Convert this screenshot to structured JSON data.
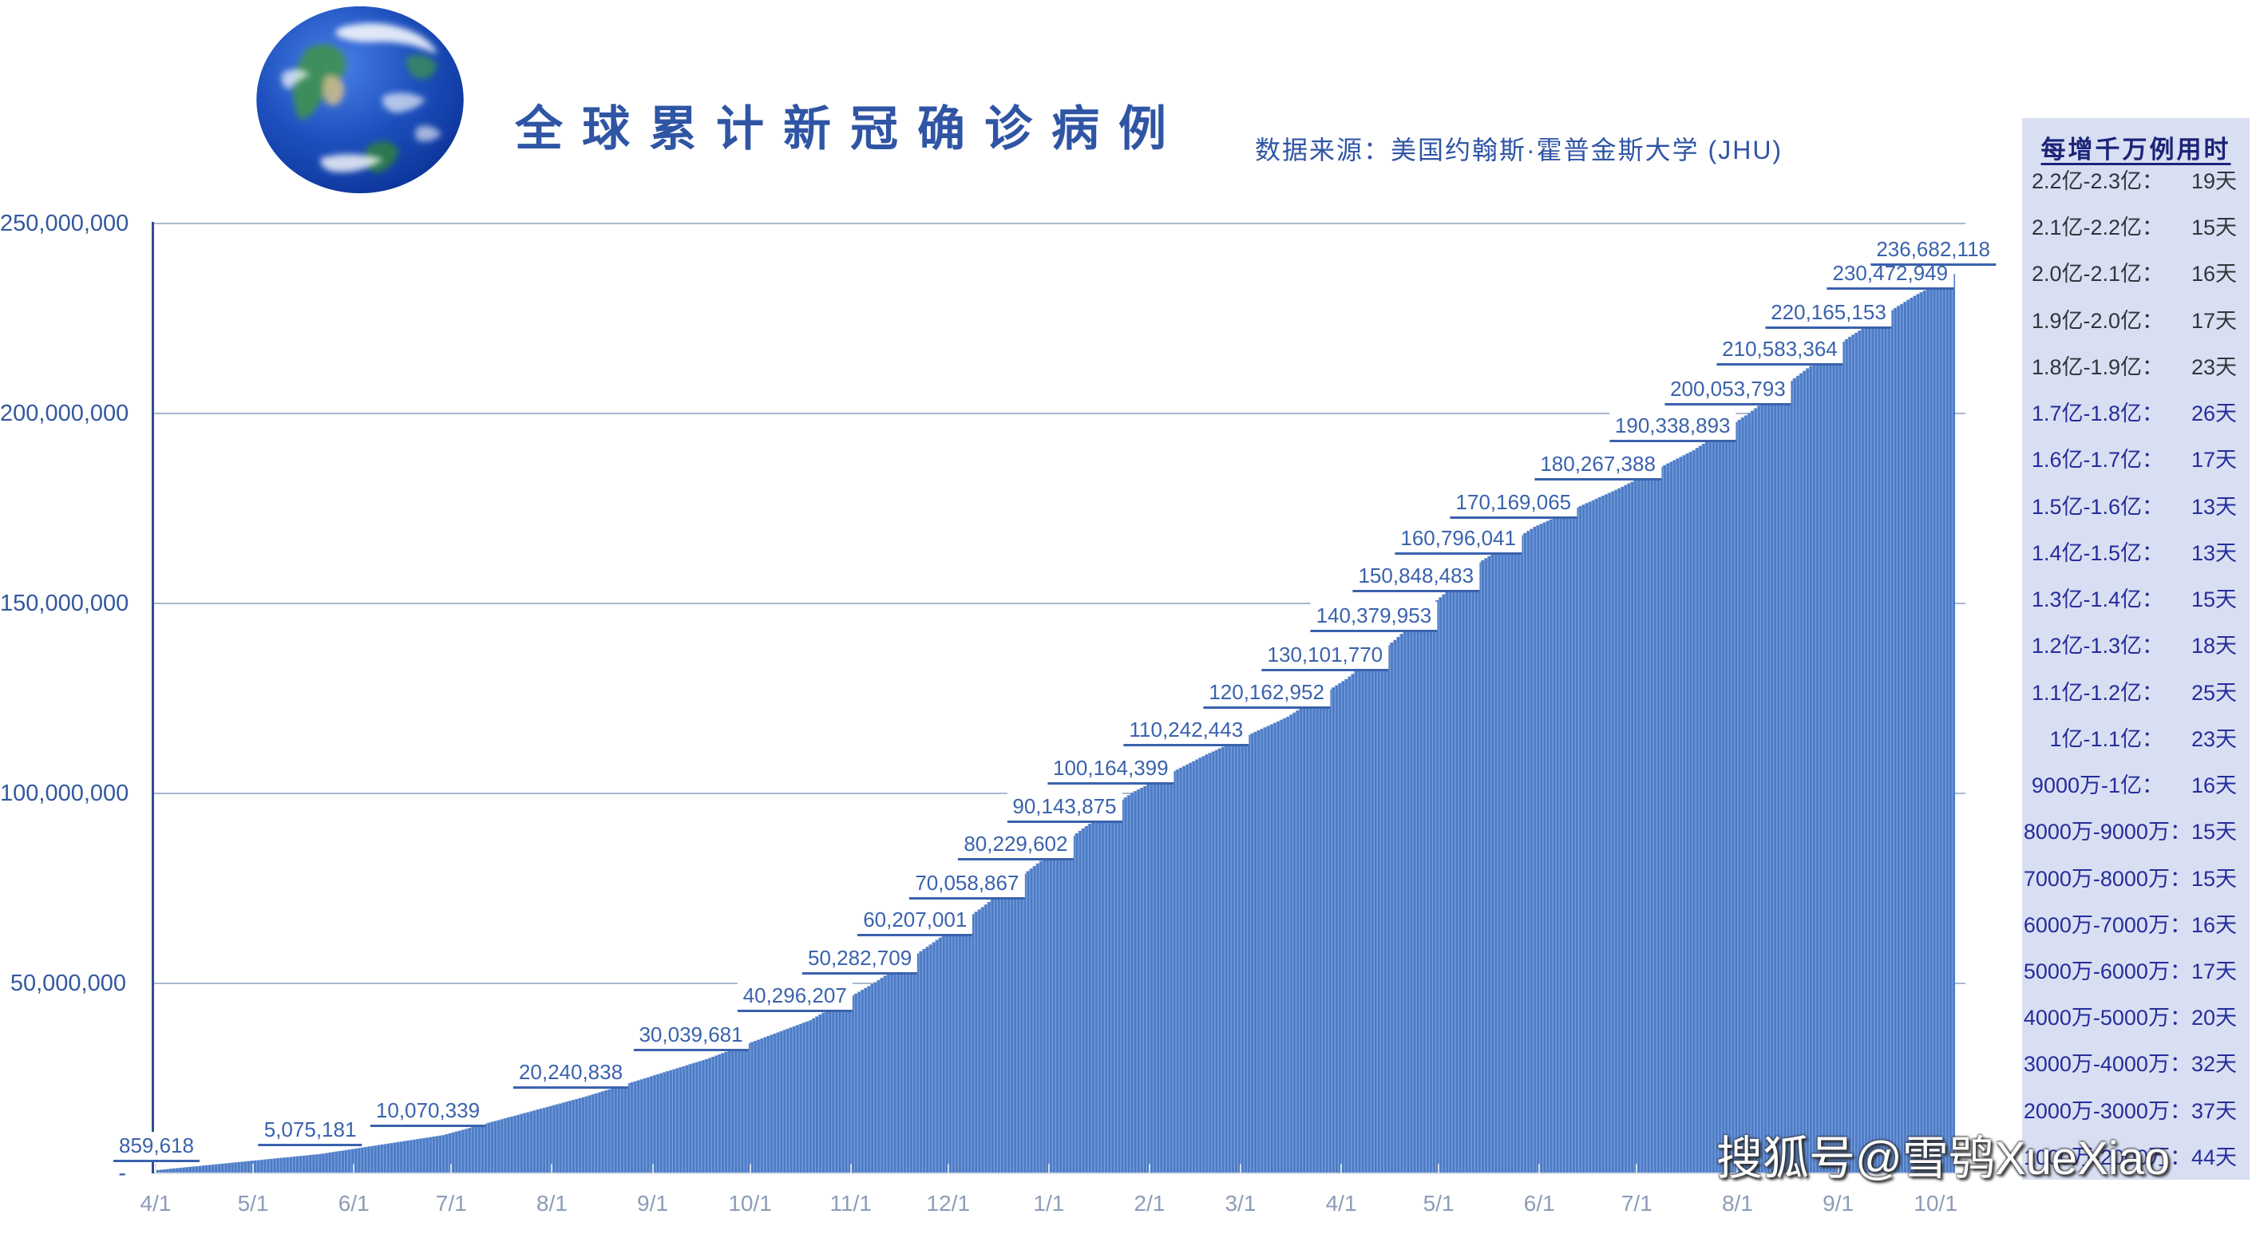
{
  "header": {
    "title": "全球累计新冠确诊病例",
    "source": "数据来源：美国约翰斯·霍普金斯大学 (JHU)"
  },
  "watermark": "搜狐号@雪鸮XueXiao",
  "sidebar": {
    "title": "每增千万例用时",
    "rows": [
      {
        "range": "2.2亿-2.3亿：",
        "days": "19天",
        "tone": "dark"
      },
      {
        "range": "2.1亿-2.2亿：",
        "days": "15天",
        "tone": "dark"
      },
      {
        "range": "2.0亿-2.1亿：",
        "days": "16天",
        "tone": "dark"
      },
      {
        "range": "1.9亿-2.0亿：",
        "days": "17天",
        "tone": "dark"
      },
      {
        "range": "1.8亿-1.9亿：",
        "days": "23天",
        "tone": "dark"
      },
      {
        "range": "1.7亿-1.8亿：",
        "days": "26天",
        "tone": "navy"
      },
      {
        "range": "1.6亿-1.7亿：",
        "days": "17天",
        "tone": "navy"
      },
      {
        "range": "1.5亿-1.6亿：",
        "days": "13天",
        "tone": "navy"
      },
      {
        "range": "1.4亿-1.5亿：",
        "days": "13天",
        "tone": "navy"
      },
      {
        "range": "1.3亿-1.4亿：",
        "days": "15天",
        "tone": "navy"
      },
      {
        "range": "1.2亿-1.3亿：",
        "days": "18天",
        "tone": "navy"
      },
      {
        "range": "1.1亿-1.2亿：",
        "days": "25天",
        "tone": "navy"
      },
      {
        "range": "1亿-1.1亿：",
        "days": "23天",
        "tone": "navy"
      },
      {
        "range": "9000万-1亿：",
        "days": "16天",
        "tone": "navy"
      },
      {
        "range": "8000万-9000万：",
        "days": "15天",
        "tone": "navy"
      },
      {
        "range": "7000万-8000万：",
        "days": "15天",
        "tone": "navy"
      },
      {
        "range": "6000万-7000万：",
        "days": "16天",
        "tone": "navy"
      },
      {
        "range": "5000万-6000万：",
        "days": "17天",
        "tone": "navy"
      },
      {
        "range": "4000万-5000万：",
        "days": "20天",
        "tone": "navy"
      },
      {
        "range": "3000万-4000万：",
        "days": "32天",
        "tone": "navy"
      },
      {
        "range": "2000万-3000万：",
        "days": "37天",
        "tone": "navy"
      },
      {
        "range": "1000万-2000万：",
        "days": "44天",
        "tone": "navy"
      }
    ]
  },
  "chart_data": {
    "type": "bar",
    "title": "全球累计新冠确诊病例",
    "xlabel": "",
    "ylabel": "",
    "ylim": [
      0,
      250000000
    ],
    "x_day_range": [
      0,
      553
    ],
    "grid": "horizontal",
    "legend": "none",
    "y_ticks": [
      {
        "label": "250,000,000",
        "value": 250000000
      },
      {
        "label": "200,000,000",
        "value": 200000000
      },
      {
        "label": "150,000,000",
        "value": 150000000
      },
      {
        "label": "100,000,000",
        "value": 100000000
      },
      {
        "label": "50,000,000",
        "value": 50000000
      },
      {
        "label": "-",
        "value": 0
      }
    ],
    "x_ticks": [
      {
        "label": "4/1",
        "day": 0
      },
      {
        "label": "5/1",
        "day": 30
      },
      {
        "label": "6/1",
        "day": 61
      },
      {
        "label": "7/1",
        "day": 91
      },
      {
        "label": "8/1",
        "day": 122
      },
      {
        "label": "9/1",
        "day": 153
      },
      {
        "label": "10/1",
        "day": 183
      },
      {
        "label": "11/1",
        "day": 214
      },
      {
        "label": "12/1",
        "day": 244
      },
      {
        "label": "1/1",
        "day": 275
      },
      {
        "label": "2/1",
        "day": 306
      },
      {
        "label": "3/1",
        "day": 334
      },
      {
        "label": "4/1",
        "day": 365
      },
      {
        "label": "5/1",
        "day": 395
      },
      {
        "label": "6/1",
        "day": 426
      },
      {
        "label": "7/1",
        "day": 456
      },
      {
        "label": "8/1",
        "day": 487
      },
      {
        "label": "9/1",
        "day": 518
      },
      {
        "label": "10/1",
        "day": 548
      }
    ],
    "milestones": [
      {
        "label": "859,618",
        "value": 859618,
        "day": 0
      },
      {
        "label": "5,075,181",
        "value": 5075181,
        "day": 50
      },
      {
        "label": "10,070,339",
        "value": 10070339,
        "day": 88
      },
      {
        "label": "20,240,838",
        "value": 20240838,
        "day": 132
      },
      {
        "label": "30,039,681",
        "value": 30039681,
        "day": 169
      },
      {
        "label": "40,296,207",
        "value": 40296207,
        "day": 201
      },
      {
        "label": "50,282,709",
        "value": 50282709,
        "day": 221
      },
      {
        "label": "60,207,001",
        "value": 60207001,
        "day": 238
      },
      {
        "label": "70,058,867",
        "value": 70058867,
        "day": 254
      },
      {
        "label": "80,229,602",
        "value": 80229602,
        "day": 269
      },
      {
        "label": "90,143,875",
        "value": 90143875,
        "day": 284
      },
      {
        "label": "100,164,399",
        "value": 100164399,
        "day": 300
      },
      {
        "label": "110,242,443",
        "value": 110242443,
        "day": 323
      },
      {
        "label": "120,162,952",
        "value": 120162952,
        "day": 348
      },
      {
        "label": "130,101,770",
        "value": 130101770,
        "day": 366
      },
      {
        "label": "140,379,953",
        "value": 140379953,
        "day": 381
      },
      {
        "label": "150,848,483",
        "value": 150848483,
        "day": 394
      },
      {
        "label": "160,796,041",
        "value": 160796041,
        "day": 407
      },
      {
        "label": "170,169,065",
        "value": 170169065,
        "day": 424
      },
      {
        "label": "180,267,388",
        "value": 180267388,
        "day": 450
      },
      {
        "label": "190,338,893",
        "value": 190338893,
        "day": 473
      },
      {
        "label": "200,053,793",
        "value": 200053793,
        "day": 490
      },
      {
        "label": "210,583,364",
        "value": 210583364,
        "day": 506
      },
      {
        "label": "220,165,153",
        "value": 220165153,
        "day": 521
      },
      {
        "label": "230,472,949",
        "value": 230472949,
        "day": 540
      },
      {
        "label": "236,682,118",
        "value": 236682118,
        "day": 553
      }
    ],
    "colors": {
      "bar": "#4d7bc5",
      "bar_stripe": "#7ea4de",
      "data_label": "#3a62ad",
      "axis_line": "#2e4d94",
      "gridline": "#a9b8cf",
      "baseline": "#d8dce6",
      "month_tick": "#dfe6f2",
      "y_tick_text": "#33589f",
      "x_tick_text": "#8d9cb8",
      "title_text": "#2f55a4",
      "source_text": "#2f55a4",
      "sidebar_bg": "#d9dff2",
      "sidebar_header": "#1b2478",
      "sidebar_dark": "#33333b",
      "sidebar_navy": "#232d9b"
    }
  }
}
